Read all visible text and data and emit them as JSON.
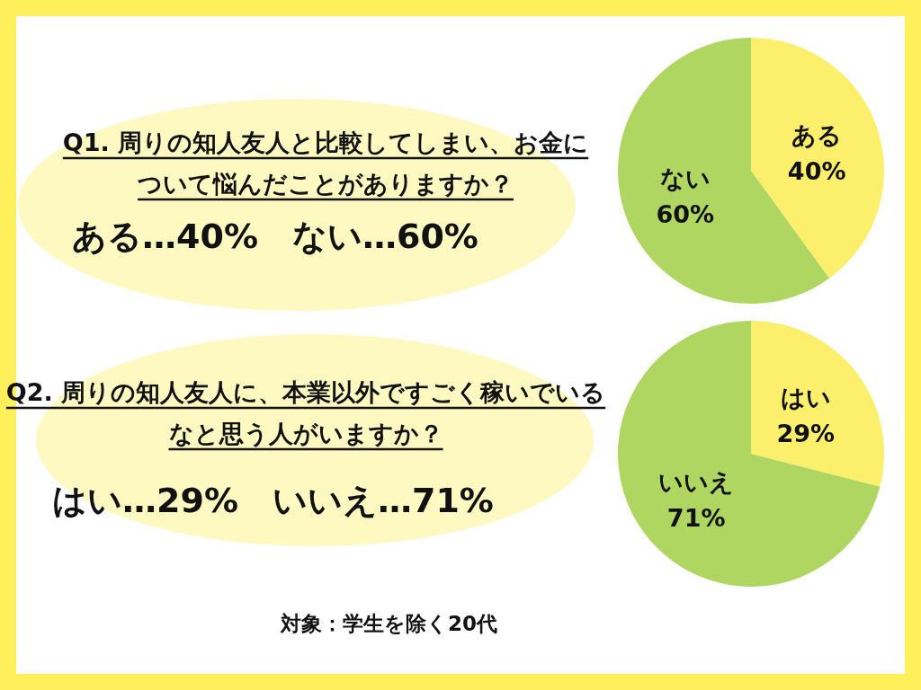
{
  "chart_data": [
    {
      "type": "pie",
      "title": "Q1. 周りの知人友人と比較してしまい、お金について悩んだことがありますか？",
      "categories": [
        "ある",
        "ない"
      ],
      "values": [
        40,
        60
      ],
      "value_labels": [
        "40%",
        "60%"
      ],
      "colors": [
        "#fbef6b",
        "#aed660"
      ],
      "annotations": [
        "ある…40%　ない…60%"
      ]
    },
    {
      "type": "pie",
      "title": "Q2. 周りの知人友人に、本業以外ですごく稼いでいるなと思う人がいますか？",
      "categories": [
        "はい",
        "いいえ"
      ],
      "values": [
        29,
        71
      ],
      "value_labels": [
        "29%",
        "71%"
      ],
      "colors": [
        "#fbef6b",
        "#aed660"
      ],
      "annotations": [
        "はい…29%　いいえ…71%",
        "対象：学生を除く20代"
      ]
    }
  ]
}
